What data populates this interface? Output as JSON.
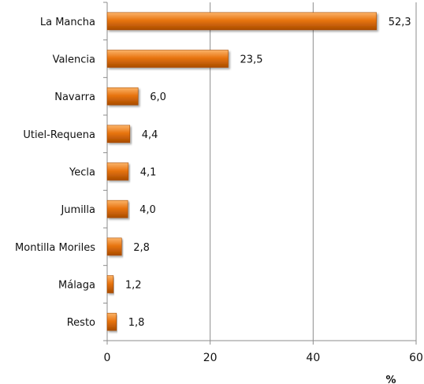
{
  "chart_data": {
    "type": "bar",
    "orientation": "horizontal",
    "categories": [
      "La Mancha",
      "Valencia",
      "Navarra",
      "Utiel-Requena",
      "Yecla",
      "Jumilla",
      "Montilla Moriles",
      "Málaga",
      "Resto"
    ],
    "values": [
      52.3,
      23.5,
      6.0,
      4.4,
      4.1,
      4.0,
      2.8,
      1.2,
      1.8
    ],
    "value_labels": [
      "52,3",
      "23,5",
      "6,0",
      "4,4",
      "4,1",
      "4,0",
      "2,8",
      "1,2",
      "1,8"
    ],
    "xlim": [
      0,
      60
    ],
    "x_ticks": [
      0,
      20,
      40,
      60
    ],
    "x_tick_labels": [
      "0",
      "20",
      "40",
      "60"
    ],
    "xlabel": "%",
    "title": "",
    "grid": true,
    "legend": false,
    "colors": {
      "bar": "#e87511",
      "bar_light": "#fbb46a",
      "bar_dark": "#a94c00",
      "grid": "#8c8c8c",
      "axis": "#8c8c8c"
    }
  }
}
